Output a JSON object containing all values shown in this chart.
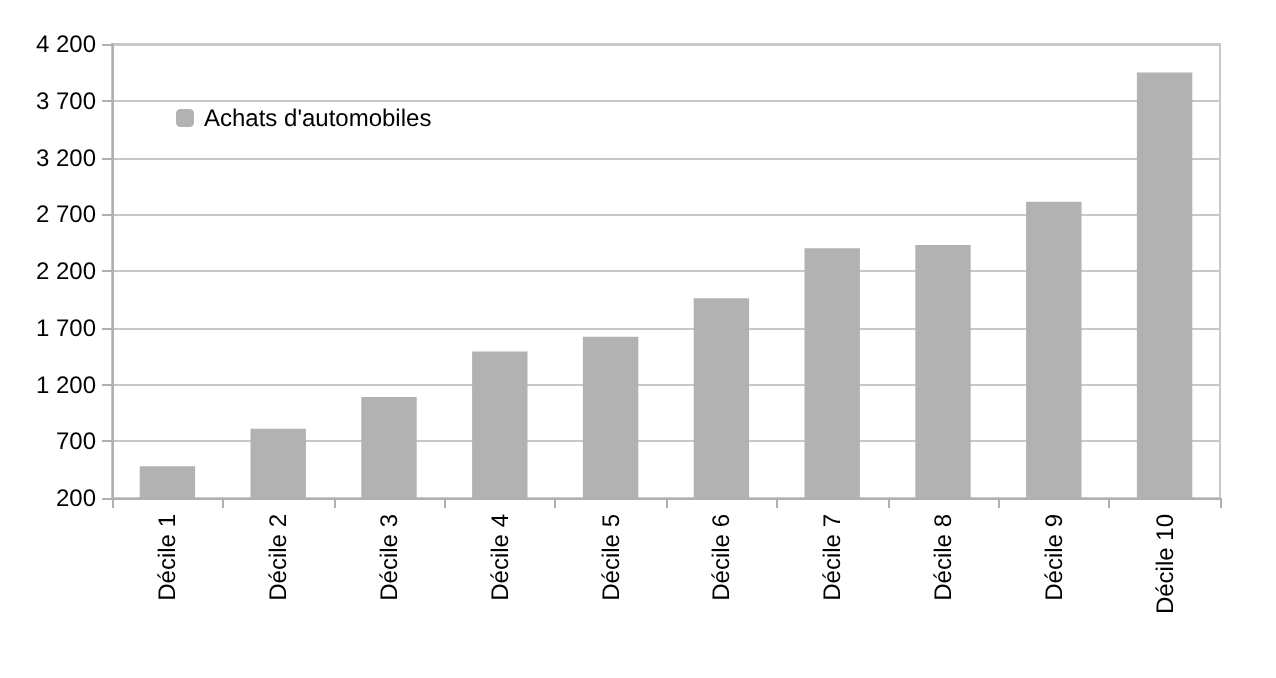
{
  "chart_data": {
    "type": "bar",
    "categories": [
      "Décile 1",
      "Décile 2",
      "Décile 3",
      "Décile 4",
      "Décile 5",
      "Décile 6",
      "Décile 7",
      "Décile 8",
      "Décile 9",
      "Décile 10"
    ],
    "series": [
      {
        "name": "Achats d'automobiles",
        "color": "#b2b2b2",
        "values": [
          480,
          810,
          1090,
          1490,
          1620,
          1960,
          2400,
          2430,
          2810,
          3950
        ]
      }
    ],
    "ylim": [
      200,
      4200
    ],
    "yticks": [
      {
        "value": 200,
        "label": "200"
      },
      {
        "value": 700,
        "label": "700"
      },
      {
        "value": 1200,
        "label": "1 200"
      },
      {
        "value": 1700,
        "label": "1 700"
      },
      {
        "value": 2200,
        "label": "2 200"
      },
      {
        "value": 2700,
        "label": "2 700"
      },
      {
        "value": 3200,
        "label": "3 200"
      },
      {
        "value": 3700,
        "label": "3 700"
      },
      {
        "value": 4200,
        "label": "4 200"
      }
    ],
    "grid": "y",
    "legend": "top left"
  }
}
